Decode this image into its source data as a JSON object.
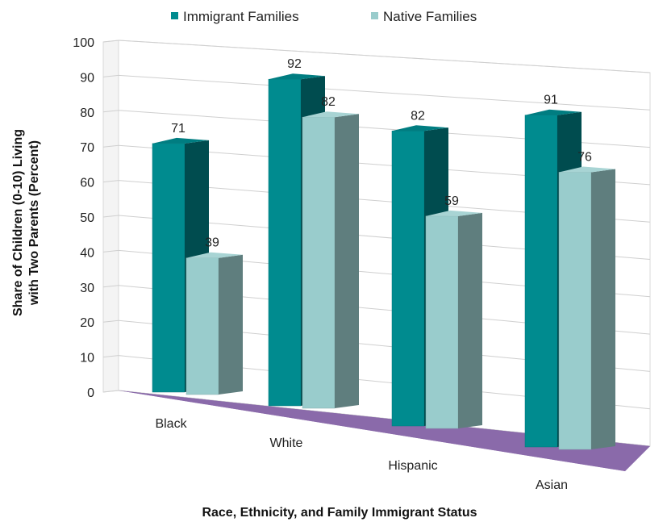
{
  "chart_data": {
    "type": "bar",
    "title": "",
    "xlabel": "Race, Ethnicity, and Family Immigrant Status",
    "ylabel_line1": "Share of Children (0-10) Living",
    "ylabel_line2": "with Two Parents (Percent)",
    "ylim": [
      0,
      100
    ],
    "yticks": [
      0,
      10,
      20,
      30,
      40,
      50,
      60,
      70,
      80,
      90,
      100
    ],
    "grid": true,
    "legend_position": "top",
    "categories": [
      "Black",
      "White",
      "Hispanic",
      "Asian"
    ],
    "series": [
      {
        "name": "Immigrant Families",
        "values": [
          71,
          92,
          82,
          91
        ],
        "color": "#008b8f"
      },
      {
        "name": "Native Families",
        "values": [
          39,
          82,
          59,
          76
        ],
        "color": "#99cccc"
      }
    ],
    "floor_color": "#8a6aaa"
  }
}
